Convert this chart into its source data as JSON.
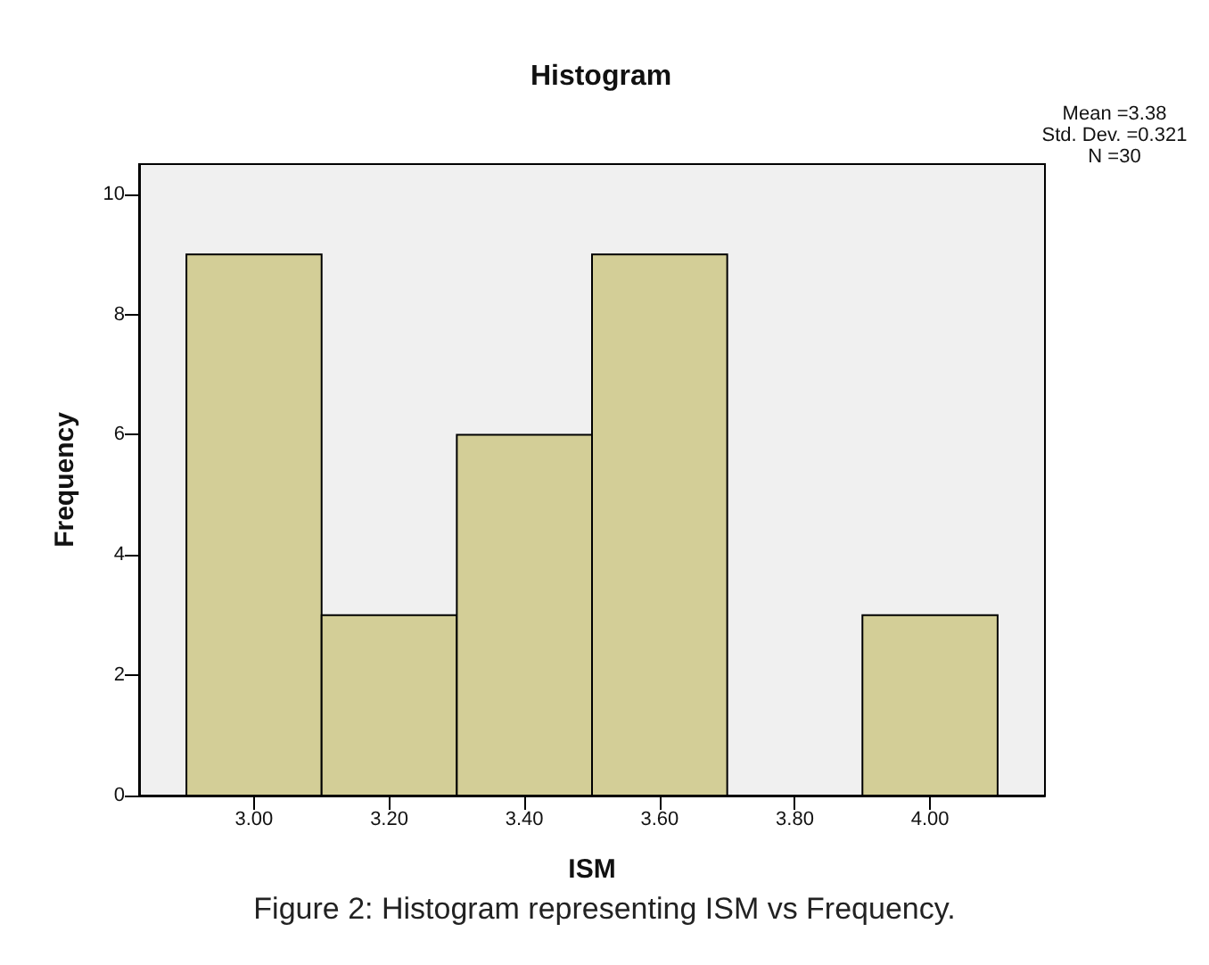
{
  "chart_data": {
    "type": "histogram",
    "title": "Histogram",
    "xlabel": "ISM",
    "ylabel": "Frequency",
    "bins": [
      2.9,
      3.1,
      3.3,
      3.5,
      3.7,
      3.9,
      4.1
    ],
    "values": [
      9,
      3,
      6,
      9,
      0,
      3
    ],
    "color": "#d3ce97",
    "xlim": [
      2.83,
      4.17
    ],
    "xticks": [
      {
        "value": 3.0,
        "label": "3.00"
      },
      {
        "value": 3.2,
        "label": "3.20"
      },
      {
        "value": 3.4,
        "label": "3.40"
      },
      {
        "value": 3.6,
        "label": "3.60"
      },
      {
        "value": 3.8,
        "label": "3.80"
      },
      {
        "value": 4.0,
        "label": "4.00"
      }
    ],
    "ylim": [
      0,
      10.5
    ],
    "yticks": [
      0,
      2,
      4,
      6,
      8,
      10
    ],
    "grid": false,
    "annotations": [
      "Mean =3.38",
      "Std. Dev. =0.321",
      "N =30",
      "Figure 2: Histogram representing ISM vs Frequency."
    ]
  }
}
